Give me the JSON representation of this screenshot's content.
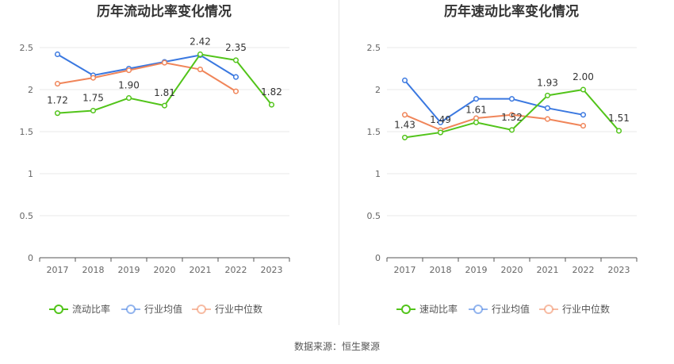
{
  "footer": {
    "source": "数据来源：恒生聚源"
  },
  "chart_data": [
    {
      "type": "line",
      "title": "历年流动比率变化情况",
      "categories": [
        "2017",
        "2018",
        "2019",
        "2020",
        "2021",
        "2022",
        "2023"
      ],
      "ylim": [
        0,
        2.5
      ],
      "yticks": [
        "0",
        "0.5",
        "1",
        "1.5",
        "2",
        "2.5"
      ],
      "grid": true,
      "legend_position": "bottom",
      "series": [
        {
          "name": "流动比率",
          "color": "#52c41a",
          "labels": true,
          "values": [
            1.72,
            1.75,
            1.9,
            1.81,
            2.42,
            2.35,
            1.82
          ],
          "data_labels": [
            "1.72",
            "1.75",
            "1.90",
            "1.81",
            "2.42",
            "2.35",
            "1.82"
          ]
        },
        {
          "name": "行业均值",
          "color": "#3a78e0",
          "labels": false,
          "values": [
            2.42,
            2.17,
            2.25,
            2.33,
            2.41,
            2.15,
            null
          ]
        },
        {
          "name": "行业中位数",
          "color": "#f08559",
          "labels": false,
          "values": [
            2.07,
            2.14,
            2.23,
            2.32,
            2.24,
            1.98,
            null
          ]
        }
      ]
    },
    {
      "type": "line",
      "title": "历年速动比率变化情况",
      "categories": [
        "2017",
        "2018",
        "2019",
        "2020",
        "2021",
        "2022",
        "2023"
      ],
      "ylim": [
        0,
        2.5
      ],
      "yticks": [
        "0",
        "0.5",
        "1",
        "1.5",
        "2",
        "2.5"
      ],
      "grid": true,
      "legend_position": "bottom",
      "series": [
        {
          "name": "速动比率",
          "color": "#52c41a",
          "labels": true,
          "values": [
            1.43,
            1.49,
            1.61,
            1.52,
            1.93,
            2.0,
            1.51
          ],
          "data_labels": [
            "1.43",
            "1.49",
            "1.61",
            "1.52",
            "1.93",
            "2.00",
            "1.51"
          ]
        },
        {
          "name": "行业均值",
          "color": "#3a78e0",
          "labels": false,
          "values": [
            2.11,
            1.61,
            1.89,
            1.89,
            1.78,
            1.7,
            null
          ]
        },
        {
          "name": "行业中位数",
          "color": "#f08559",
          "labels": false,
          "values": [
            1.7,
            1.52,
            1.66,
            1.7,
            1.65,
            1.57,
            null
          ]
        }
      ]
    }
  ]
}
